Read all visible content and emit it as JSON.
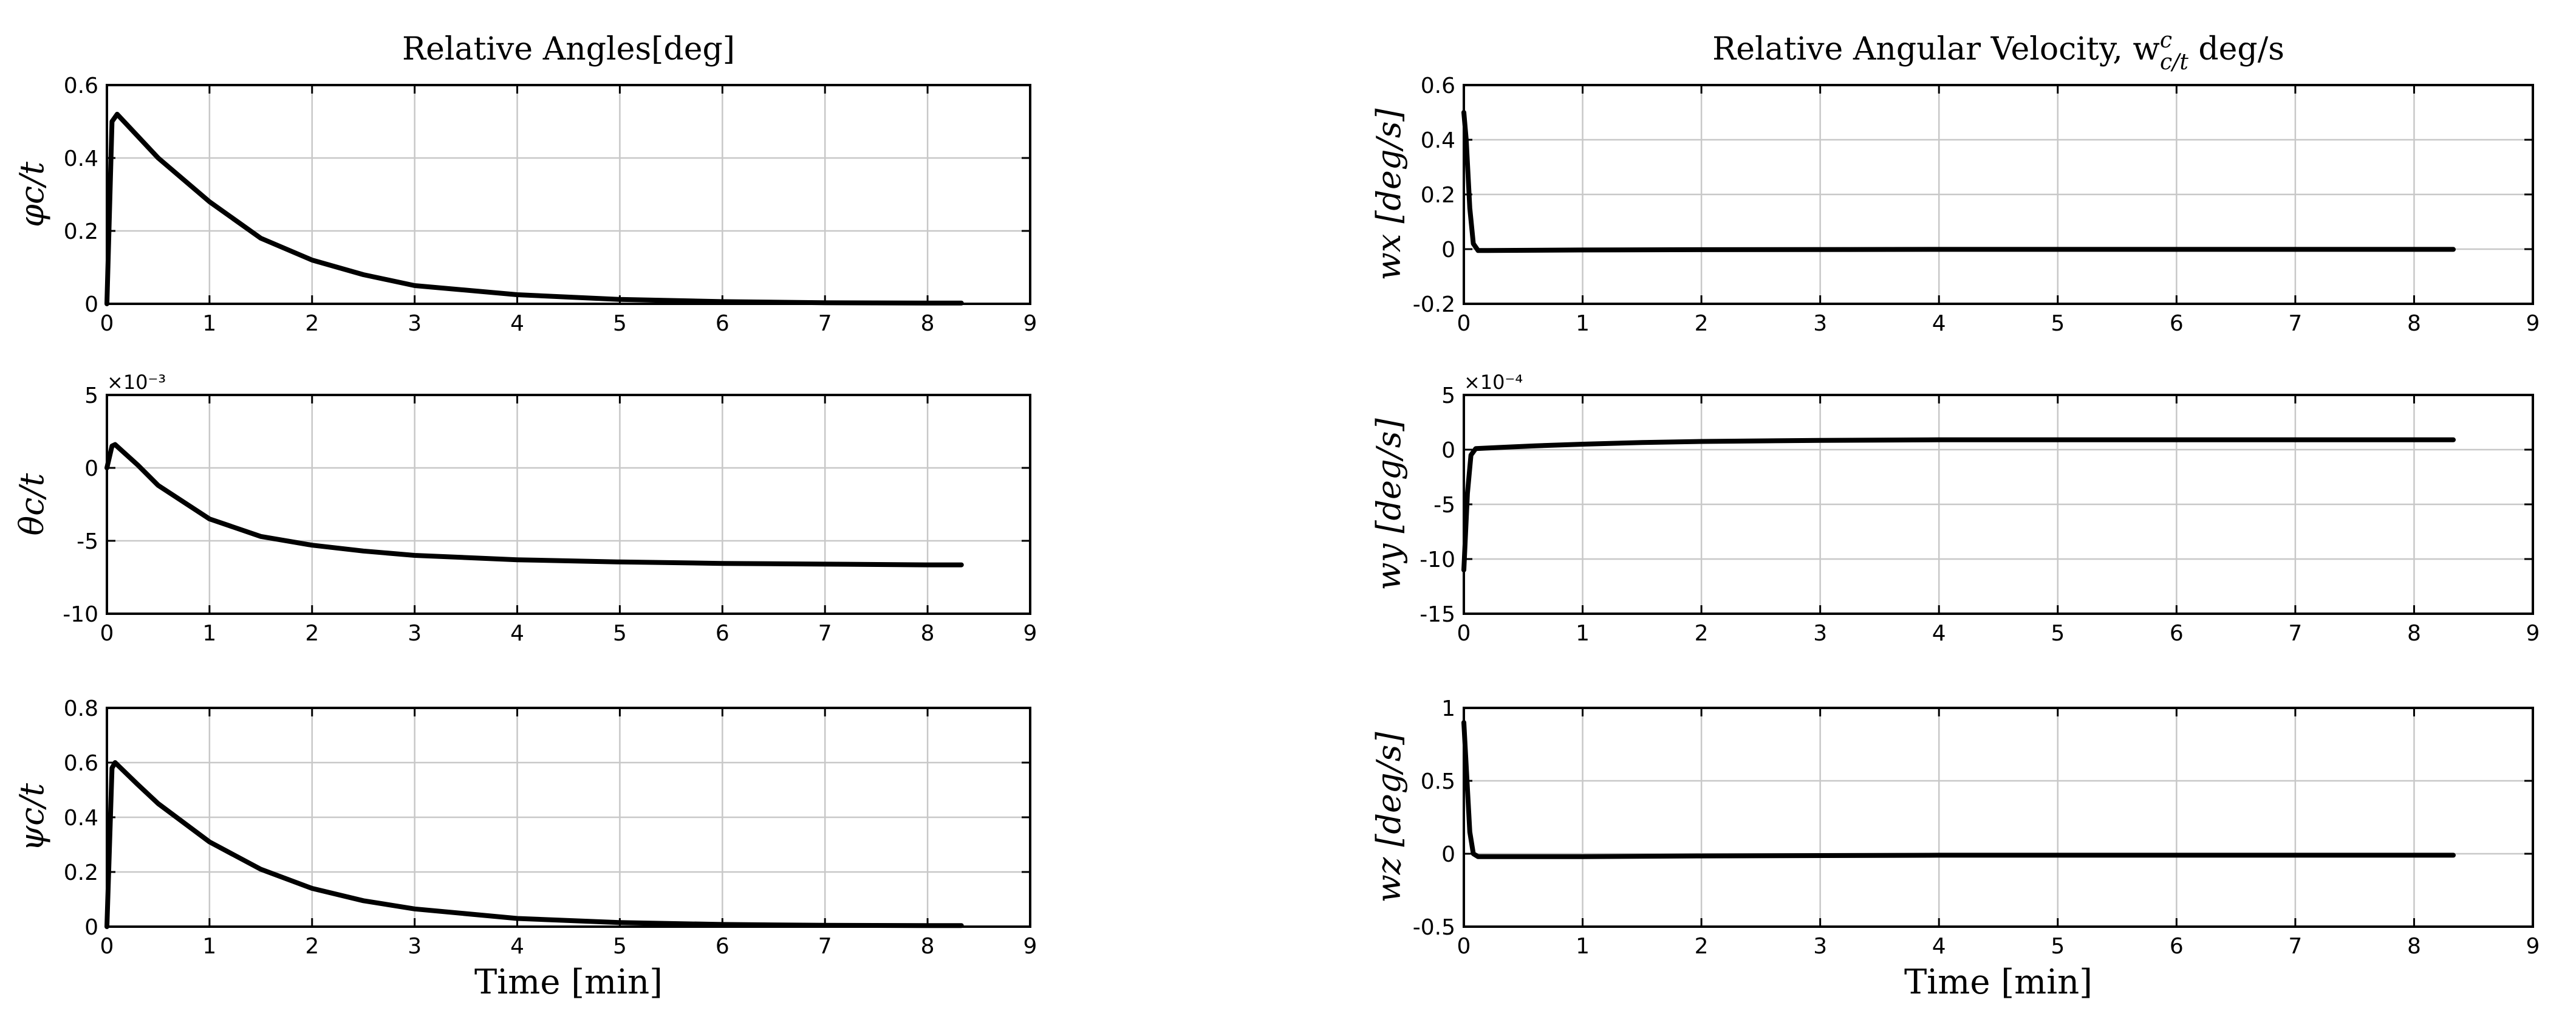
{
  "chart_data": [
    {
      "type": "line",
      "title": "Relative Angles[deg]",
      "ylabel": "φc/t",
      "xlabel": "",
      "xlim": [
        0,
        9
      ],
      "ylim": [
        0,
        0.6
      ],
      "xticks": [
        "0",
        "1",
        "2",
        "3",
        "4",
        "5",
        "6",
        "7",
        "8",
        "9"
      ],
      "yticks": [
        "0",
        "0.2",
        "0.4",
        "0.6"
      ],
      "exponent_label": "",
      "grid": true,
      "series": [
        {
          "x": [
            0,
            0.05,
            0.1,
            0.3,
            0.5,
            1,
            1.5,
            2,
            2.5,
            3,
            4,
            5,
            6,
            7,
            8,
            8.33
          ],
          "y": [
            0,
            0.5,
            0.52,
            0.46,
            0.4,
            0.28,
            0.18,
            0.12,
            0.08,
            0.05,
            0.025,
            0.012,
            0.006,
            0.003,
            0.002,
            0.002
          ]
        }
      ]
    },
    {
      "type": "line",
      "title": "",
      "ylabel": "θc/t",
      "xlabel": "",
      "xlim": [
        0,
        9
      ],
      "ylim": [
        -10,
        5
      ],
      "xticks": [
        "0",
        "1",
        "2",
        "3",
        "4",
        "5",
        "6",
        "7",
        "8",
        "9"
      ],
      "yticks": [
        "-10",
        "-5",
        "0",
        "5"
      ],
      "exponent_label": "×10⁻³",
      "grid": true,
      "series": [
        {
          "x": [
            0,
            0.05,
            0.08,
            0.3,
            0.5,
            1,
            1.5,
            2,
            2.5,
            3,
            4,
            5,
            6,
            7,
            8,
            8.33
          ],
          "y": [
            0,
            1.5,
            1.6,
            0.2,
            -1.2,
            -3.5,
            -4.7,
            -5.3,
            -5.7,
            -6.0,
            -6.3,
            -6.45,
            -6.55,
            -6.6,
            -6.65,
            -6.65
          ]
        }
      ]
    },
    {
      "type": "line",
      "title": "",
      "ylabel": "ψc/t",
      "xlabel": "Time [min]",
      "xlim": [
        0,
        9
      ],
      "ylim": [
        0,
        0.8
      ],
      "xticks": [
        "0",
        "1",
        "2",
        "3",
        "4",
        "5",
        "6",
        "7",
        "8",
        "9"
      ],
      "yticks": [
        "0",
        "0.2",
        "0.4",
        "0.6",
        "0.8"
      ],
      "exponent_label": "",
      "grid": true,
      "series": [
        {
          "x": [
            0,
            0.05,
            0.08,
            0.3,
            0.5,
            1,
            1.5,
            2,
            2.5,
            3,
            4,
            5,
            6,
            7,
            8,
            8.33
          ],
          "y": [
            0,
            0.58,
            0.6,
            0.52,
            0.45,
            0.31,
            0.21,
            0.14,
            0.095,
            0.065,
            0.03,
            0.015,
            0.008,
            0.005,
            0.004,
            0.004
          ]
        }
      ]
    },
    {
      "type": "line",
      "title": "Relative Angular Velocity, w",
      "title_superscript": "c",
      "title_subscript": "c/t",
      "title_suffix": " deg/s",
      "ylabel": "wx [deg/s]",
      "xlabel": "",
      "xlim": [
        0,
        9
      ],
      "ylim": [
        -0.2,
        0.6
      ],
      "xticks": [
        "0",
        "1",
        "2",
        "3",
        "4",
        "5",
        "6",
        "7",
        "8",
        "9"
      ],
      "yticks": [
        "-0.2",
        "0",
        "0.2",
        "0.4",
        "0.6"
      ],
      "exponent_label": "",
      "grid": true,
      "series": [
        {
          "x": [
            0,
            0.02,
            0.05,
            0.08,
            0.12,
            0.2,
            1,
            2,
            4,
            6,
            8,
            8.33
          ],
          "y": [
            0.5,
            0.4,
            0.15,
            0.02,
            -0.005,
            -0.005,
            -0.003,
            -0.002,
            -0.001,
            -0.001,
            -0.001,
            -0.001
          ]
        }
      ]
    },
    {
      "type": "line",
      "title": "",
      "ylabel": "wy [deg/s]",
      "xlabel": "",
      "xlim": [
        0,
        9
      ],
      "ylim": [
        -15,
        5
      ],
      "xticks": [
        "0",
        "1",
        "2",
        "3",
        "4",
        "5",
        "6",
        "7",
        "8",
        "9"
      ],
      "yticks": [
        "-15",
        "-10",
        "-5",
        "0",
        "5"
      ],
      "exponent_label": "×10⁻⁴",
      "grid": true,
      "series": [
        {
          "x": [
            0,
            0.03,
            0.06,
            0.1,
            0.3,
            0.6,
            1,
            1.5,
            2,
            3,
            4,
            5,
            6,
            7,
            8,
            8.33
          ],
          "y": [
            -11,
            -4,
            -0.5,
            0.1,
            0.2,
            0.35,
            0.5,
            0.65,
            0.75,
            0.85,
            0.9,
            0.9,
            0.9,
            0.9,
            0.9,
            0.9
          ]
        }
      ]
    },
    {
      "type": "line",
      "title": "",
      "ylabel": "wz [deg/s]",
      "xlabel": "Time [min]",
      "xlim": [
        0,
        9
      ],
      "ylim": [
        -0.5,
        1
      ],
      "xticks": [
        "0",
        "1",
        "2",
        "3",
        "4",
        "5",
        "6",
        "7",
        "8",
        "9"
      ],
      "yticks": [
        "-0.5",
        "0",
        "0.5",
        "1"
      ],
      "exponent_label": "",
      "grid": true,
      "series": [
        {
          "x": [
            0,
            0.02,
            0.05,
            0.08,
            0.12,
            0.2,
            1,
            2,
            4,
            6,
            8,
            8.33
          ],
          "y": [
            0.9,
            0.6,
            0.15,
            0.0,
            -0.02,
            -0.02,
            -0.02,
            -0.015,
            -0.01,
            -0.01,
            -0.01,
            -0.01
          ]
        }
      ]
    }
  ]
}
